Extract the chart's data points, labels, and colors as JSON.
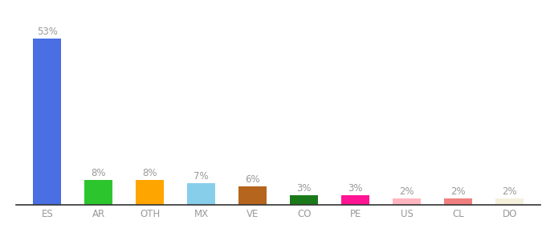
{
  "categories": [
    "ES",
    "AR",
    "OTH",
    "MX",
    "VE",
    "CO",
    "PE",
    "US",
    "CL",
    "DO"
  ],
  "values": [
    53,
    8,
    8,
    7,
    6,
    3,
    3,
    2,
    2,
    2
  ],
  "bar_colors": [
    "#4A6FE3",
    "#2DC52D",
    "#FFA500",
    "#87CEEB",
    "#B5651D",
    "#1A7A1A",
    "#FF1493",
    "#FFB6C1",
    "#F08080",
    "#F5F0DC"
  ],
  "ylim": [
    0,
    60
  ],
  "bar_width": 0.55,
  "label_color": "#999999",
  "label_fontsize": 8.5,
  "tick_fontsize": 8.5,
  "background_color": "#ffffff"
}
